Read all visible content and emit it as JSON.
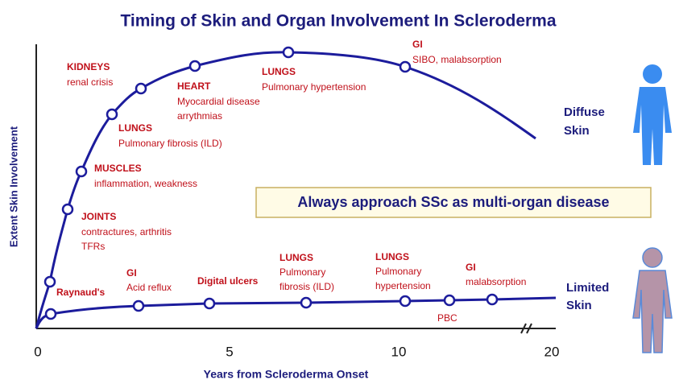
{
  "title": "Timing of Skin and Organ Involvement In Scleroderma",
  "y_axis_label": "Extent Skin Involvement",
  "x_axis_label": "Years from Scleroderma Onset",
  "x_ticks": [
    "0",
    "5",
    "10",
    "20"
  ],
  "callout": "Always approach SSc as multi-organ disease",
  "diffuse_label": [
    "Diffuse",
    "Skin"
  ],
  "limited_label": [
    "Limited",
    "Skin"
  ],
  "diffuse_annotations": [
    {
      "heading": "KIDNEYS",
      "lines": [
        "renal crisis"
      ]
    },
    {
      "heading": "HEART",
      "lines": [
        "Myocardial disease",
        "arrythmias"
      ]
    },
    {
      "heading": "LUNGS",
      "lines": [
        "Pulmonary hypertension"
      ]
    },
    {
      "heading": "GI",
      "lines": [
        "SIBO, malabsorption"
      ]
    },
    {
      "heading": "LUNGS",
      "lines": [
        "Pulmonary fibrosis (ILD)"
      ]
    },
    {
      "heading": "MUSCLES",
      "lines": [
        "inflammation, weakness"
      ]
    },
    {
      "heading": "JOINTS",
      "lines": [
        "contractures, arthritis",
        "TFRs"
      ]
    }
  ],
  "limited_annotations": [
    {
      "heading": "Raynaud's",
      "lines": []
    },
    {
      "heading": "GI",
      "lines": [
        "Acid reflux"
      ]
    },
    {
      "heading": "Digital ulcers",
      "lines": []
    },
    {
      "heading": "LUNGS",
      "lines": [
        "Pulmonary",
        "fibrosis (ILD)"
      ]
    },
    {
      "heading": "LUNGS",
      "lines": [
        "Pulmonary",
        "hypertension"
      ]
    },
    {
      "heading": "GI",
      "lines": [
        "malabsorption"
      ]
    },
    {
      "heading": "",
      "lines": [
        "PBC"
      ]
    }
  ]
}
